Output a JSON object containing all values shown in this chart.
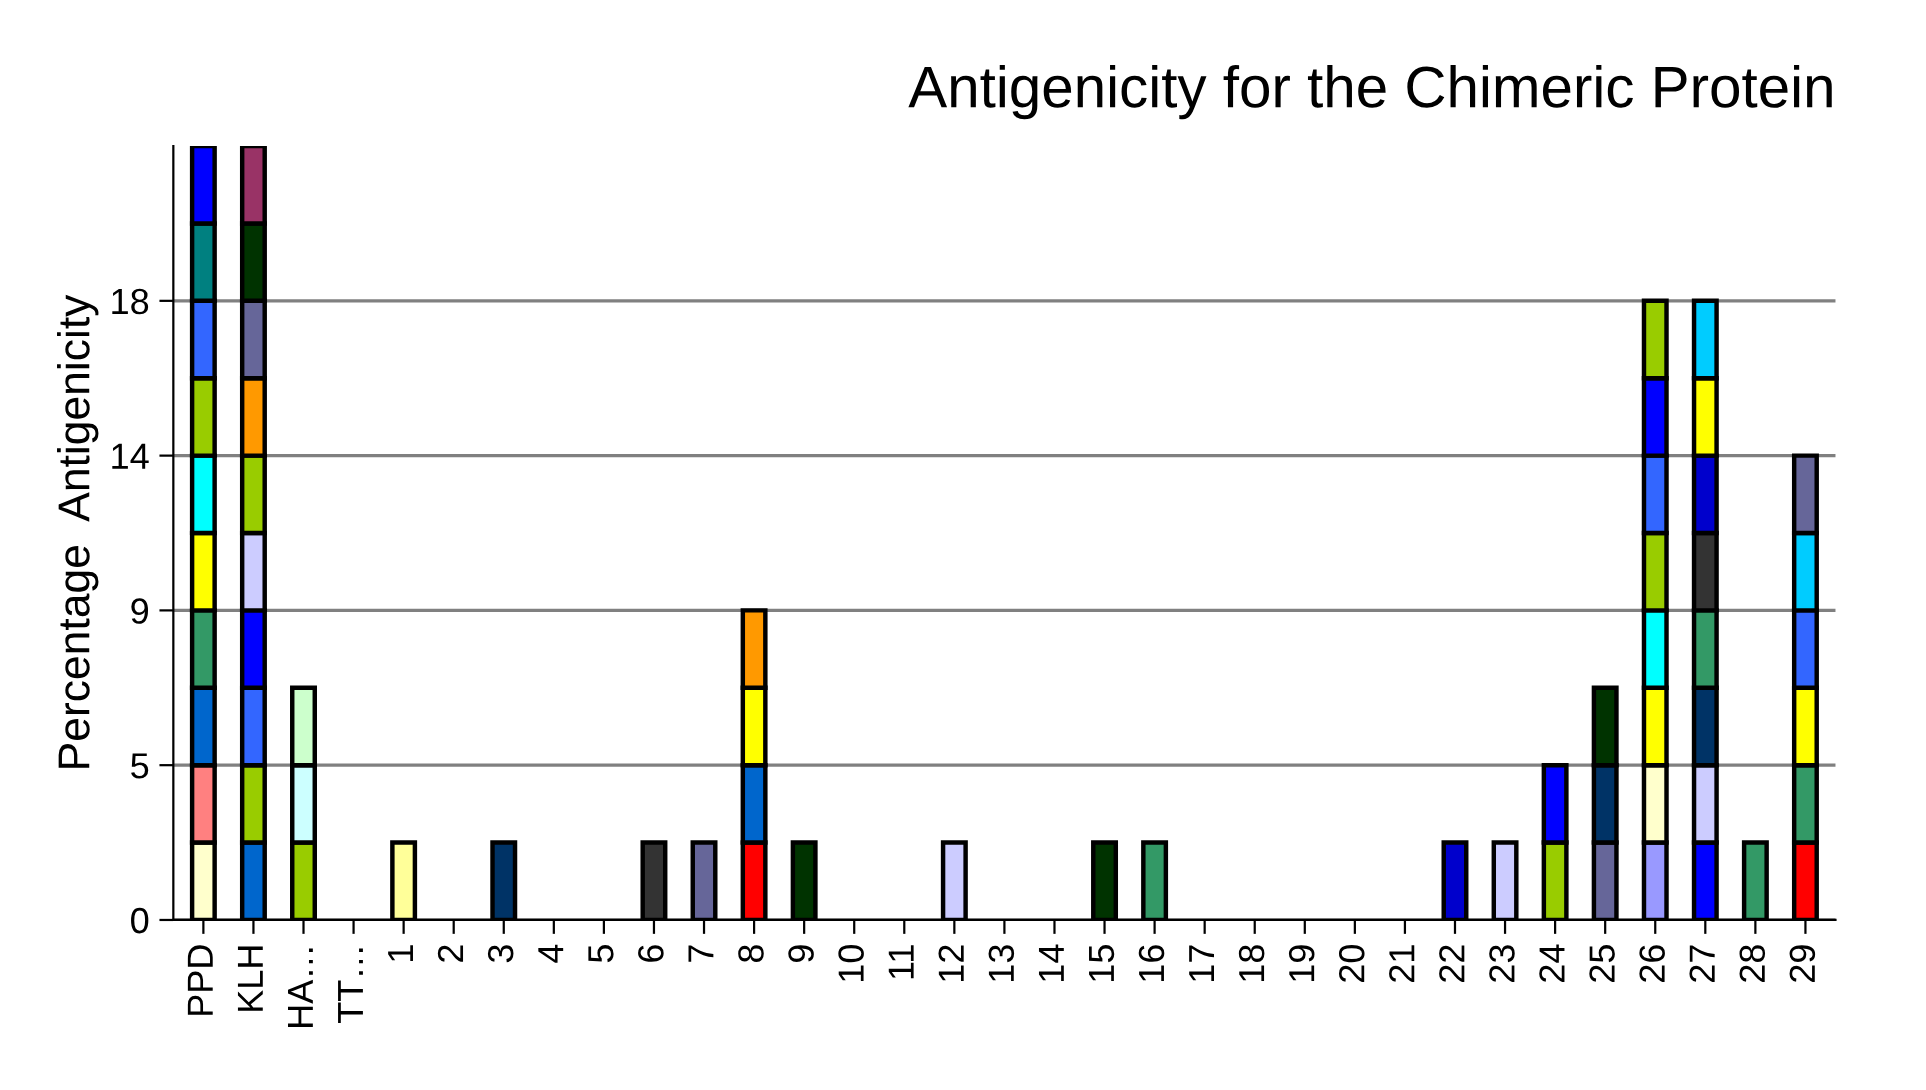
{
  "chart_data": {
    "type": "bar",
    "title": "Antigenicity for the Chimeric Protein",
    "ylabel": "Percentage  Antigenicity",
    "stacked": true,
    "grid": "y",
    "legend": false,
    "categories": [
      "PPD",
      "KLH",
      "HA…",
      "TT…",
      "1",
      "2",
      "3",
      "4",
      "5",
      "6",
      "7",
      "8",
      "9",
      "10",
      "11",
      "12",
      "13",
      "14",
      "15",
      "16",
      "17",
      "18",
      "19",
      "20",
      "21",
      "22",
      "23",
      "24",
      "25",
      "26",
      "27",
      "28",
      "29"
    ],
    "ylim": [
      0,
      22.5
    ],
    "yticks": [
      0,
      {
        "value": 4.5,
        "label": "5"
      },
      9,
      {
        "value": 13.5,
        "label": "14"
      },
      18
    ],
    "series": [
      {
        "values": [
          2.25,
          2.25,
          2.25,
          null,
          2.25,
          null,
          2.25,
          null,
          null,
          2.25,
          2.25,
          2.25,
          2.25,
          null,
          null,
          2.25,
          null,
          null,
          2.25,
          2.25,
          null,
          null,
          null,
          null,
          null,
          2.25,
          2.25,
          2.25,
          2.25,
          2.25,
          2.25,
          2.25,
          2.25
        ],
        "colors": [
          "#ffffcc",
          "#0066cc",
          "#99cc00",
          null,
          "#ffff99",
          null,
          "#003366",
          null,
          null,
          "#333333",
          "#666699",
          "#ff0000",
          "#003300",
          null,
          null,
          "#ccccff",
          null,
          null,
          "#003300",
          "#339966",
          null,
          null,
          null,
          null,
          null,
          "#0000cc",
          "#ccccff",
          "#99cc00",
          "#666699",
          "#9999ff",
          "#0000ff",
          "#339966",
          "#ff0000"
        ]
      },
      {
        "values": [
          2.25,
          2.25,
          2.25,
          null,
          null,
          null,
          null,
          null,
          null,
          null,
          null,
          2.25,
          null,
          null,
          null,
          null,
          null,
          null,
          null,
          null,
          null,
          null,
          null,
          null,
          null,
          null,
          null,
          2.25,
          2.25,
          2.25,
          2.25,
          null,
          2.25
        ],
        "colors": [
          "#ff8080",
          "#99cc00",
          "#ccffff",
          null,
          null,
          null,
          null,
          null,
          null,
          null,
          null,
          "#0066cc",
          null,
          null,
          null,
          null,
          null,
          null,
          null,
          null,
          null,
          null,
          null,
          null,
          null,
          null,
          null,
          "#0000ff",
          "#003366",
          "#ffffcc",
          "#ccccff",
          null,
          "#339966"
        ]
      },
      {
        "values": [
          2.25,
          2.25,
          2.25,
          null,
          null,
          null,
          null,
          null,
          null,
          null,
          null,
          2.25,
          null,
          null,
          null,
          null,
          null,
          null,
          null,
          null,
          null,
          null,
          null,
          null,
          null,
          null,
          null,
          null,
          2.25,
          2.25,
          2.25,
          null,
          2.25
        ],
        "colors": [
          "#0066cc",
          "#3366ff",
          "#ccffcc",
          null,
          null,
          null,
          null,
          null,
          null,
          null,
          null,
          "#ffff00",
          null,
          null,
          null,
          null,
          null,
          null,
          null,
          null,
          null,
          null,
          null,
          null,
          null,
          null,
          null,
          null,
          "#003300",
          "#ffff00",
          "#003366",
          null,
          "#ffff00"
        ]
      },
      {
        "values": [
          2.25,
          2.25,
          null,
          null,
          null,
          null,
          null,
          null,
          null,
          null,
          null,
          2.25,
          null,
          null,
          null,
          null,
          null,
          null,
          null,
          null,
          null,
          null,
          null,
          null,
          null,
          null,
          null,
          null,
          null,
          2.25,
          2.25,
          null,
          2.25
        ],
        "colors": [
          "#339966",
          "#0000ff",
          null,
          null,
          null,
          null,
          null,
          null,
          null,
          null,
          null,
          "#ff9900",
          null,
          null,
          null,
          null,
          null,
          null,
          null,
          null,
          null,
          null,
          null,
          null,
          null,
          null,
          null,
          null,
          null,
          "#00ffff",
          "#339966",
          null,
          "#3366ff"
        ]
      },
      {
        "values": [
          2.25,
          2.25,
          null,
          null,
          null,
          null,
          null,
          null,
          null,
          null,
          null,
          null,
          null,
          null,
          null,
          null,
          null,
          null,
          null,
          null,
          null,
          null,
          null,
          null,
          null,
          null,
          null,
          null,
          null,
          2.25,
          2.25,
          null,
          2.25
        ],
        "colors": [
          "#ffff00",
          "#ccccff",
          null,
          null,
          null,
          null,
          null,
          null,
          null,
          null,
          null,
          null,
          null,
          null,
          null,
          null,
          null,
          null,
          null,
          null,
          null,
          null,
          null,
          null,
          null,
          null,
          null,
          null,
          null,
          "#99cc00",
          "#333333",
          null,
          "#00ccff"
        ]
      },
      {
        "values": [
          2.25,
          2.25,
          null,
          null,
          null,
          null,
          null,
          null,
          null,
          null,
          null,
          null,
          null,
          null,
          null,
          null,
          null,
          null,
          null,
          null,
          null,
          null,
          null,
          null,
          null,
          null,
          null,
          null,
          null,
          2.25,
          2.25,
          null,
          2.25
        ],
        "colors": [
          "#00ffff",
          "#99cc00",
          null,
          null,
          null,
          null,
          null,
          null,
          null,
          null,
          null,
          null,
          null,
          null,
          null,
          null,
          null,
          null,
          null,
          null,
          null,
          null,
          null,
          null,
          null,
          null,
          null,
          null,
          null,
          "#3366ff",
          "#0000cc",
          null,
          "#666699"
        ]
      },
      {
        "values": [
          2.25,
          2.25,
          null,
          null,
          null,
          null,
          null,
          null,
          null,
          null,
          null,
          null,
          null,
          null,
          null,
          null,
          null,
          null,
          null,
          null,
          null,
          null,
          null,
          null,
          null,
          null,
          null,
          null,
          null,
          2.25,
          2.25,
          null,
          null
        ],
        "colors": [
          "#99cc00",
          "#ff9900",
          null,
          null,
          null,
          null,
          null,
          null,
          null,
          null,
          null,
          null,
          null,
          null,
          null,
          null,
          null,
          null,
          null,
          null,
          null,
          null,
          null,
          null,
          null,
          null,
          null,
          null,
          null,
          "#0000ff",
          "#ffff00",
          null,
          null
        ]
      },
      {
        "values": [
          2.25,
          2.25,
          null,
          null,
          null,
          null,
          null,
          null,
          null,
          null,
          null,
          null,
          null,
          null,
          null,
          null,
          null,
          null,
          null,
          null,
          null,
          null,
          null,
          null,
          null,
          null,
          null,
          null,
          null,
          2.25,
          2.25,
          null,
          null
        ],
        "colors": [
          "#3366ff",
          "#666699",
          null,
          null,
          null,
          null,
          null,
          null,
          null,
          null,
          null,
          null,
          null,
          null,
          null,
          null,
          null,
          null,
          null,
          null,
          null,
          null,
          null,
          null,
          null,
          null,
          null,
          null,
          null,
          "#99cc00",
          "#00ccff",
          null,
          null
        ]
      },
      {
        "values": [
          2.25,
          2.25,
          null,
          null,
          null,
          null,
          null,
          null,
          null,
          null,
          null,
          null,
          null,
          null,
          null,
          null,
          null,
          null,
          null,
          null,
          null,
          null,
          null,
          null,
          null,
          null,
          null,
          null,
          null,
          null,
          null,
          null,
          null
        ],
        "colors": [
          "#008080",
          "#003300",
          null,
          null,
          null,
          null,
          null,
          null,
          null,
          null,
          null,
          null,
          null,
          null,
          null,
          null,
          null,
          null,
          null,
          null,
          null,
          null,
          null,
          null,
          null,
          null,
          null,
          null,
          null,
          null,
          null,
          null,
          null
        ]
      },
      {
        "values": [
          2.25,
          2.25,
          null,
          null,
          null,
          null,
          null,
          null,
          null,
          null,
          null,
          null,
          null,
          null,
          null,
          null,
          null,
          null,
          null,
          null,
          null,
          null,
          null,
          null,
          null,
          null,
          null,
          null,
          null,
          null,
          null,
          null,
          null
        ],
        "colors": [
          "#0000ff",
          "#993366",
          null,
          null,
          null,
          null,
          null,
          null,
          null,
          null,
          null,
          null,
          null,
          null,
          null,
          null,
          null,
          null,
          null,
          null,
          null,
          null,
          null,
          null,
          null,
          null,
          null,
          null,
          null,
          null,
          null,
          null,
          null
        ]
      }
    ]
  }
}
